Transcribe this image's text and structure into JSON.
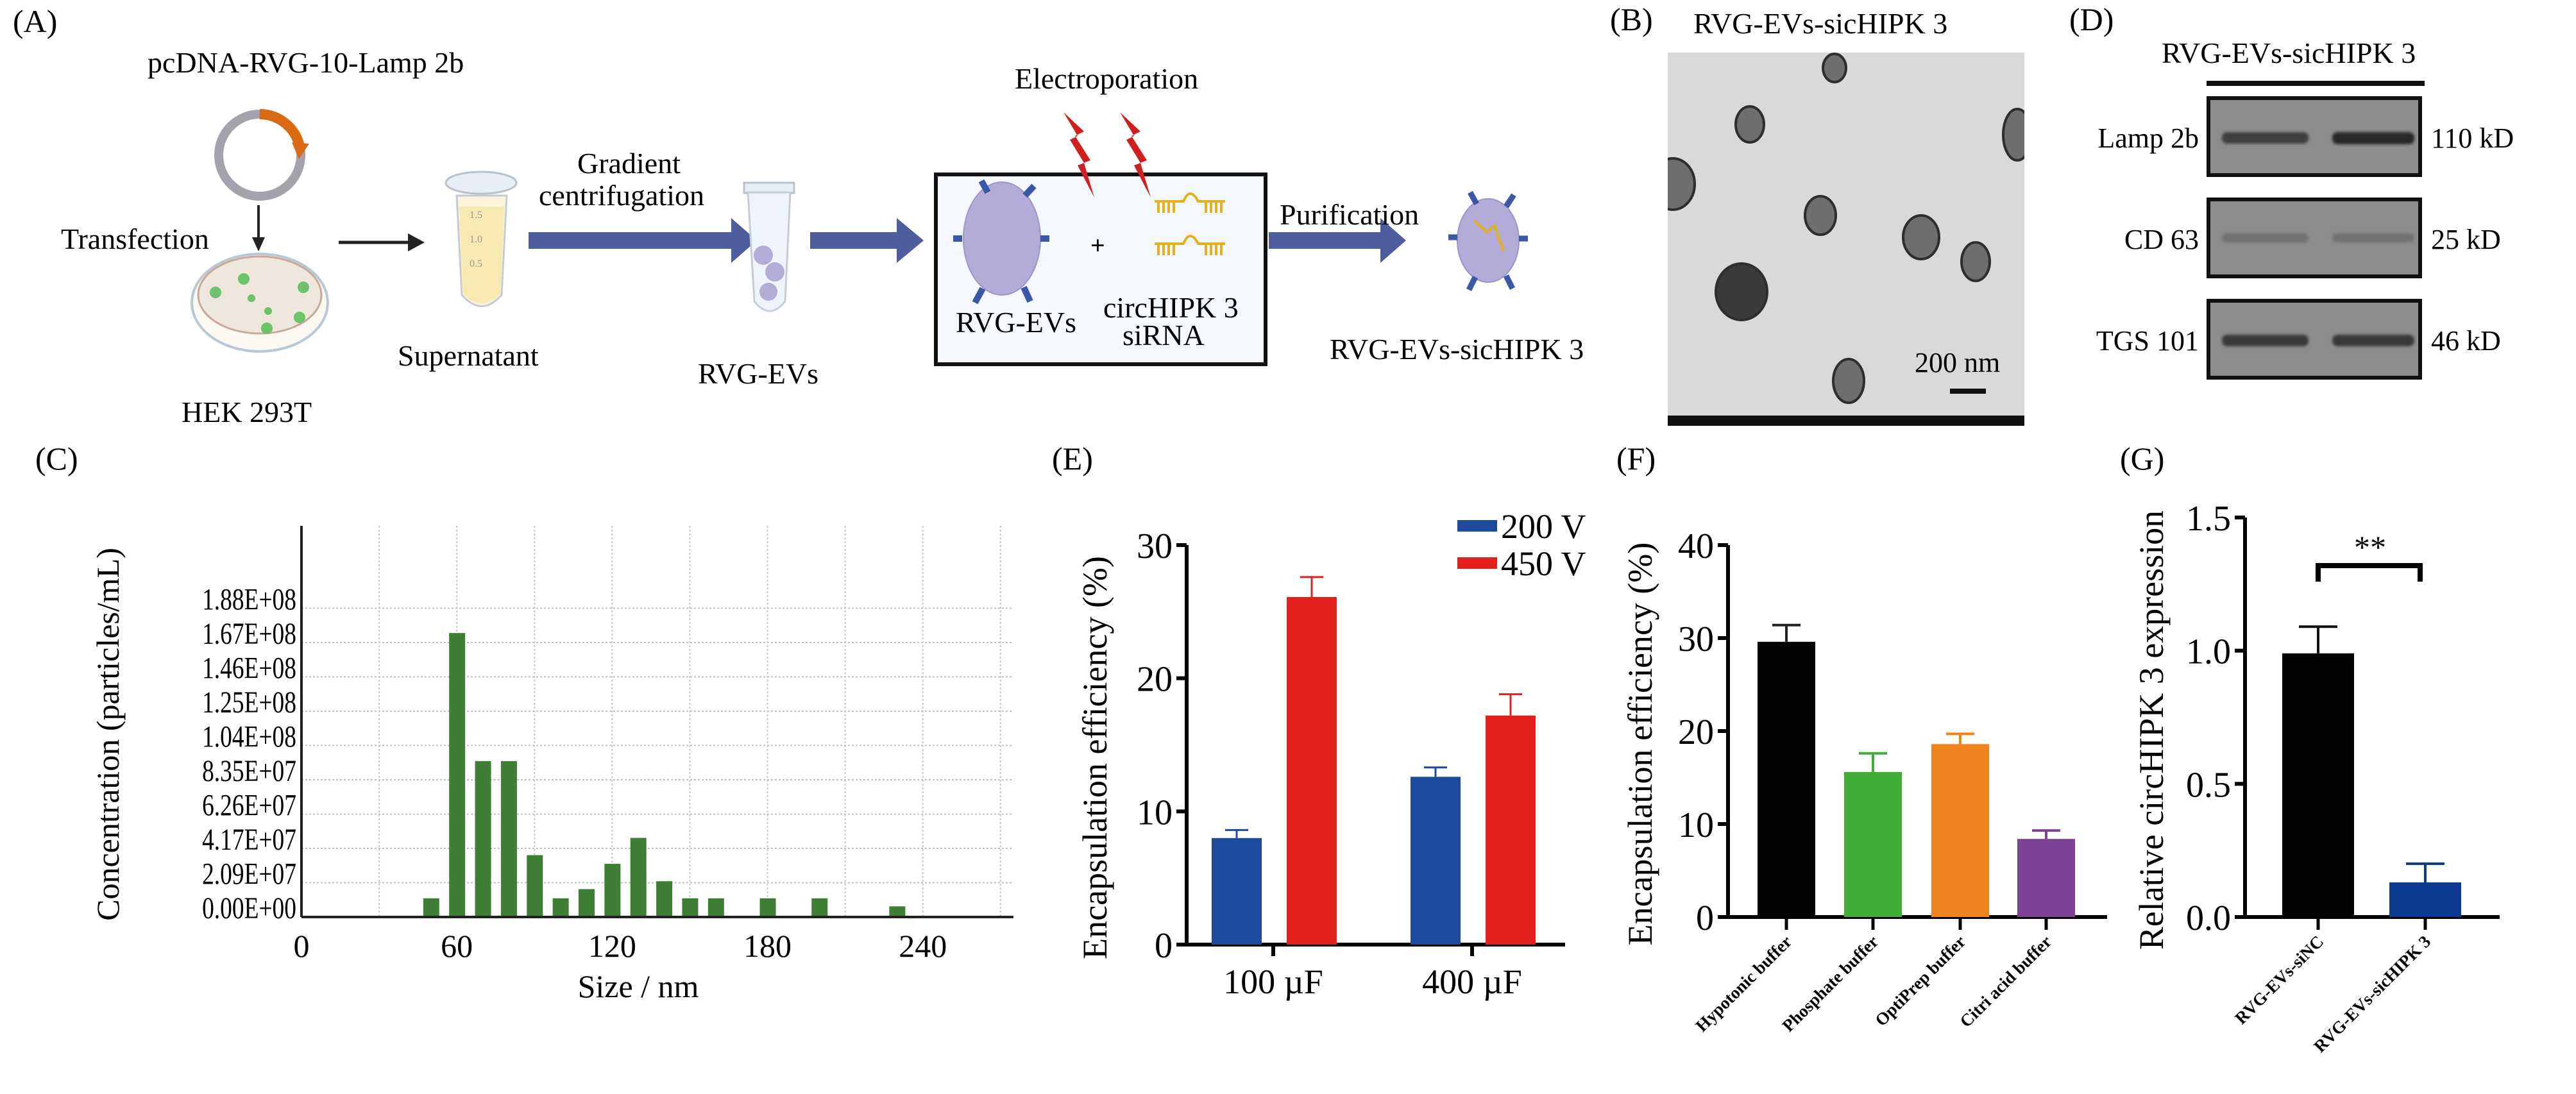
{
  "panels": {
    "A": {
      "label": "(A)",
      "plasmid_label": "pcDNA-RVG-10-Lamp 2b",
      "transfection_label": "Transfection",
      "cell_label": "HEK 293T",
      "supernatant_label": "Supernatant",
      "gradient_label_1": "Gradient",
      "gradient_label_2": "centrifugation",
      "rvg_evs_label": "RVG-EVs",
      "electroporation_label": "Electroporation",
      "box_evs_label": "RVG-EVs",
      "box_sirna_label_1": "circHIPK 3",
      "box_sirna_label_2": "siRNA",
      "plus": "+",
      "purification_label": "Purification",
      "product_label": "RVG-EVs-sicHIPK 3",
      "tube_marks": [
        "1.5",
        "1.0",
        "0.5"
      ],
      "colors": {
        "arrow": "#4e5d9c",
        "ev": "#b3acd8",
        "protein": "#3a57a8",
        "sirna": "#e2b122",
        "bolt": "#cf1f1f",
        "plasmid_ring": "#a3a3ad",
        "plasmid_insert": "#d96a12",
        "box_fill": "#f4f8fc"
      }
    },
    "B": {
      "label": "(B)",
      "title": "RVG-EVs-sicHIPK 3",
      "scale_bar_label": "200 nm"
    },
    "D": {
      "label": "(D)",
      "title": "RVG-EVs-sicHIPK 3",
      "blots": [
        {
          "protein": "Lamp 2b",
          "size": "110 kD",
          "band_intensity": [
            0.7,
            0.9
          ]
        },
        {
          "protein": "CD 63",
          "size": "25 kD",
          "band_intensity": [
            0.25,
            0.25
          ]
        },
        {
          "protein": "TGS 101",
          "size": "46 kD",
          "band_intensity": [
            0.75,
            0.75
          ]
        }
      ]
    },
    "C": {
      "label": "(C)"
    },
    "E": {
      "label": "(E)"
    },
    "F": {
      "label": "(F)"
    },
    "G": {
      "label": "(G)"
    }
  },
  "chart_data": [
    {
      "id": "C",
      "type": "bar",
      "title": "",
      "xlabel": "Size / nm",
      "ylabel": "Concentration (particles/mL)",
      "x": [
        50,
        60,
        70,
        80,
        90,
        100,
        110,
        120,
        130,
        140,
        150,
        160,
        180,
        200,
        230
      ],
      "values": [
        11400000,
        173000000,
        95000000,
        95000000,
        37700000,
        11400000,
        17000000,
        32400000,
        48200000,
        21800000,
        11400000,
        11400000,
        11400000,
        11400000,
        6500000
      ],
      "xlim": [
        0,
        275
      ],
      "xticks": [
        "0",
        "60",
        "120",
        "180",
        "240"
      ],
      "xtick_values": [
        0,
        60,
        120,
        180,
        240
      ],
      "yticks": [
        "0.00E+00",
        "2.09E+07",
        "4.17E+07",
        "6.26E+07",
        "8.35E+07",
        "1.04E+08",
        "1.25E+08",
        "1.46E+08",
        "1.67E+08",
        "1.88E+08"
      ],
      "ylim": [
        0,
        201000000
      ],
      "grid": true,
      "color": "#3f7f35"
    },
    {
      "id": "E",
      "type": "bar",
      "title": "",
      "xlabel": "",
      "ylabel": "Encapsulation efficiency (%)",
      "categories": [
        "100 µF",
        "400 µF"
      ],
      "series": [
        {
          "name": "200 V",
          "values": [
            8.0,
            12.6
          ],
          "error": [
            0.6,
            0.7
          ],
          "color": "#1c4a9c"
        },
        {
          "name": "450 V",
          "values": [
            26.1,
            17.2
          ],
          "error": [
            1.5,
            1.6
          ],
          "color": "#e3211c"
        }
      ],
      "yticks": [
        "0",
        "10",
        "20",
        "30"
      ],
      "ylim": [
        0,
        30
      ],
      "legend": "top-right",
      "grid": false
    },
    {
      "id": "F",
      "type": "bar",
      "title": "",
      "xlabel": "",
      "ylabel": "Encapsulation efficiency (%)",
      "categories": [
        "Hypotonic buffer",
        "Phosphate buffer",
        "OptiPrep buffer",
        "Citri acid buffer"
      ],
      "values": [
        29.6,
        15.6,
        18.6,
        8.4
      ],
      "error": [
        1.8,
        2.0,
        1.1,
        0.9
      ],
      "colors": [
        "#050203",
        "#41ad36",
        "#ee841e",
        "#7e4294"
      ],
      "yticks": [
        "0",
        "10",
        "20",
        "30",
        "40"
      ],
      "ylim": [
        0,
        40
      ],
      "grid": false
    },
    {
      "id": "G",
      "type": "bar",
      "title": "",
      "xlabel": "",
      "ylabel": "Relative circHIPK 3 expression",
      "categories": [
        "RVG-EVs-siNC",
        "RVG-EVs-sicHIPK 3"
      ],
      "values": [
        0.99,
        0.13
      ],
      "error": [
        0.1,
        0.07
      ],
      "colors": [
        "#050203",
        "#0c3a92"
      ],
      "yticks": [
        "0.0",
        "0.5",
        "1.0",
        "1.5"
      ],
      "ylim": [
        0,
        1.5
      ],
      "significance": "**",
      "grid": false
    }
  ]
}
